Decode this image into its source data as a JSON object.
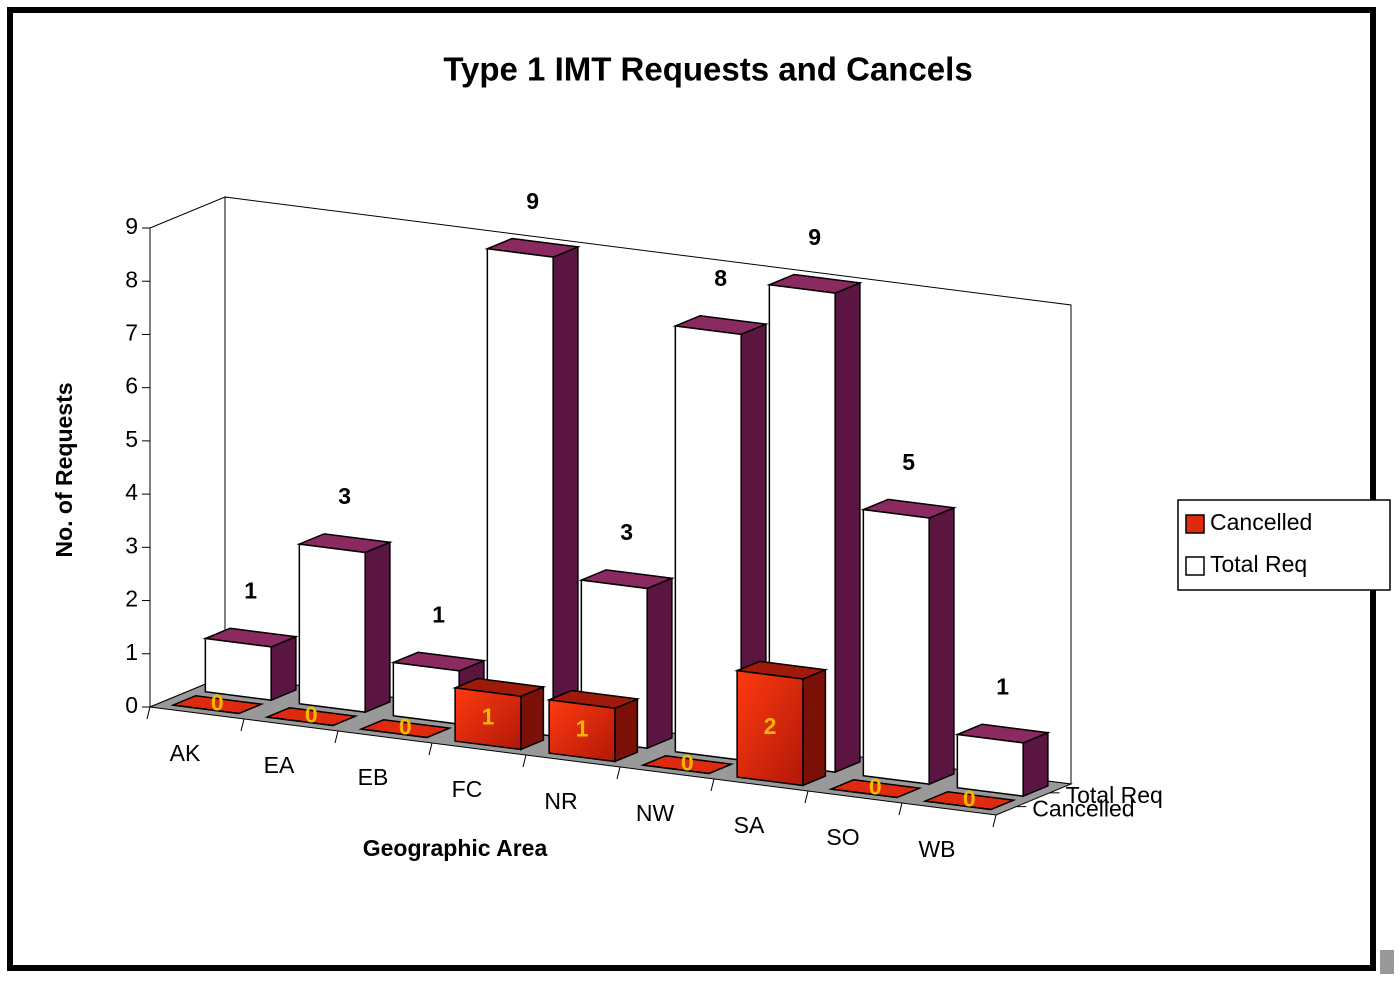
{
  "chart_data": {
    "type": "bar3d",
    "title": "Type 1 IMT Requests and Cancels",
    "x_label": "Geographic Area",
    "y_label": "No. of Requests",
    "categories": [
      "AK",
      "EA",
      "EB",
      "FC",
      "NR",
      "NW",
      "SA",
      "SO",
      "WB"
    ],
    "series": [
      {
        "name": "Cancelled",
        "color": "#e02a10",
        "values": [
          0,
          0,
          0,
          1,
          1,
          0,
          2,
          0,
          0
        ]
      },
      {
        "name": "Total Req",
        "color": "#ffffff",
        "values": [
          1,
          3,
          1,
          9,
          3,
          8,
          9,
          5,
          1
        ]
      }
    ],
    "ylim": [
      0,
      9
    ],
    "yticks": [
      0,
      1,
      2,
      3,
      4,
      5,
      6,
      7,
      8,
      9
    ],
    "legend": "right"
  }
}
